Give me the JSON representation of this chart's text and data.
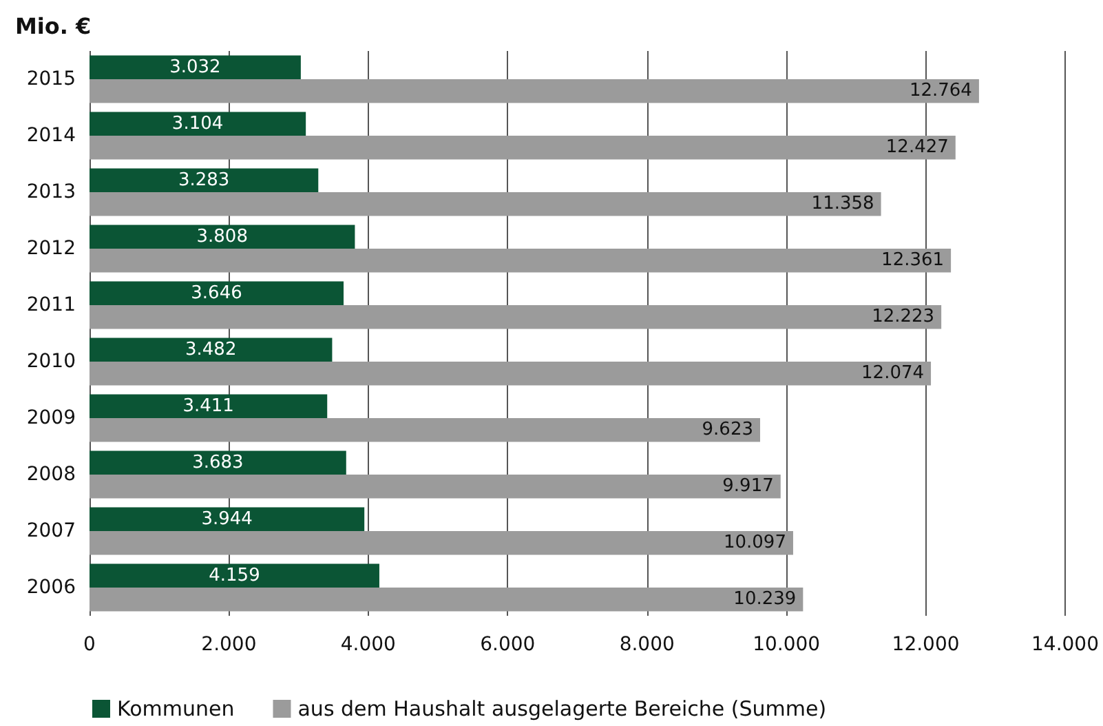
{
  "chart_data": {
    "type": "bar",
    "orientation": "horizontal",
    "ylabel": "Mio. €",
    "categories": [
      "2015",
      "2014",
      "2013",
      "2012",
      "2011",
      "2010",
      "2009",
      "2008",
      "2007",
      "2006"
    ],
    "series": [
      {
        "name": "Kommunen",
        "color": "#0b5535",
        "values": [
          3032,
          3104,
          3283,
          3808,
          3646,
          3482,
          3411,
          3683,
          3944,
          4159
        ],
        "value_labels": [
          "3.032",
          "3.104",
          "3.283",
          "3.808",
          "3.646",
          "3.482",
          "3.411",
          "3.683",
          "3.944",
          "4.159"
        ]
      },
      {
        "name": "aus dem Haushalt ausgelagerte Bereiche (Summe)",
        "color": "#9b9b9b",
        "values": [
          12764,
          12427,
          11358,
          12361,
          12223,
          12074,
          9623,
          9917,
          10097,
          10239
        ],
        "value_labels": [
          "12.764",
          "12.427",
          "11.358",
          "12.361",
          "12.223",
          "12.074",
          "9.623",
          "9.917",
          "10.097",
          "10.239"
        ]
      }
    ],
    "xlim": [
      0,
      14000
    ],
    "xticks": [
      {
        "value": 0,
        "label": "0"
      },
      {
        "value": 2000,
        "label": "2.000"
      },
      {
        "value": 4000,
        "label": "4.000"
      },
      {
        "value": 6000,
        "label": "6.000"
      },
      {
        "value": 8000,
        "label": "8.000"
      },
      {
        "value": 10000,
        "label": "10.000"
      },
      {
        "value": 12000,
        "label": "12.000"
      },
      {
        "value": 14000,
        "label": "14.000"
      }
    ],
    "grid": "x",
    "legend": "bottom left"
  }
}
